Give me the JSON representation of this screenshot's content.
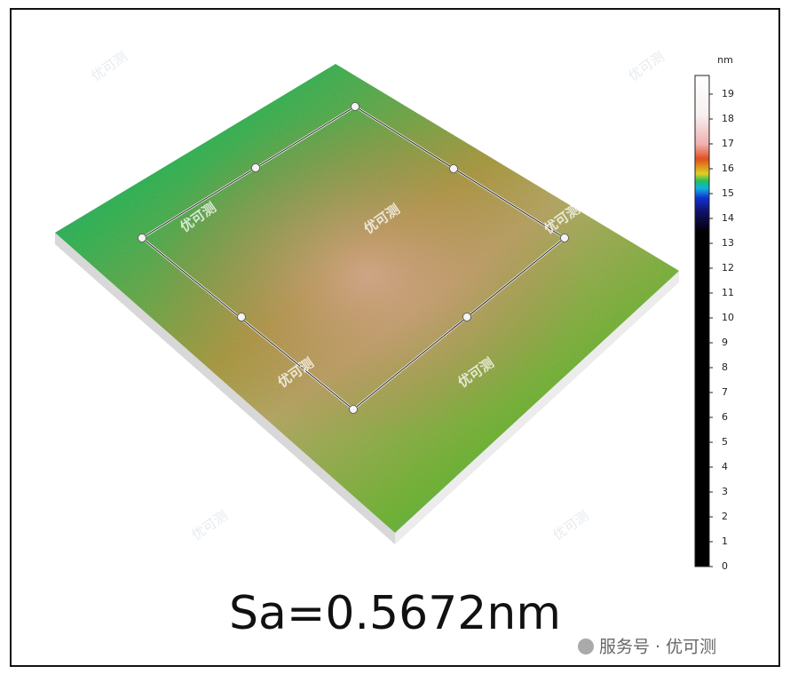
{
  "colorbar": {
    "unit": "nm",
    "range": [
      0,
      19.75
    ],
    "ticks": [
      0,
      1,
      2,
      3,
      4,
      5,
      6,
      7,
      8,
      9,
      10,
      11,
      12,
      13,
      14,
      15,
      16,
      17,
      18,
      19
    ]
  },
  "caption": "Sa=0.5672nm",
  "watermark": "优可测",
  "footer": "服务号 · 优可测"
}
